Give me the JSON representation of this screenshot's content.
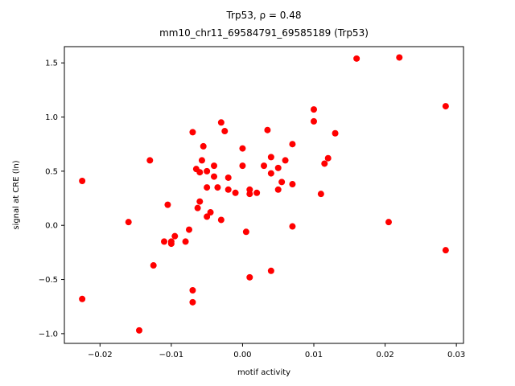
{
  "figure": {
    "background": "#ffffff"
  },
  "chart_data": {
    "type": "scatter",
    "title_line1": "Trp53, ρ = 0.48",
    "title_line2": "mm10_chr11_69584791_69585189 (Trp53)",
    "xlabel": "motif activity",
    "ylabel": "signal at CRE (ln)",
    "xlim": [
      -0.025,
      0.031
    ],
    "ylim": [
      -1.09,
      1.65
    ],
    "xticks": [
      -0.02,
      -0.01,
      0.0,
      0.01,
      0.02,
      0.03
    ],
    "xtick_labels": [
      "−0.02",
      "−0.01",
      "0.00",
      "0.01",
      "0.02",
      "0.03"
    ],
    "yticks": [
      -1.0,
      -0.5,
      0.0,
      0.5,
      1.0,
      1.5
    ],
    "ytick_labels": [
      "−1.0",
      "−0.5",
      "0.0",
      "0.5",
      "1.0",
      "1.5"
    ],
    "grid": false,
    "legend_position": "none",
    "marker_color": "#ff0000",
    "marker_radius": 4,
    "points": [
      [
        -0.0225,
        -0.68
      ],
      [
        -0.0225,
        0.41
      ],
      [
        -0.016,
        0.03
      ],
      [
        -0.0145,
        -0.97
      ],
      [
        -0.013,
        0.6
      ],
      [
        -0.0125,
        -0.37
      ],
      [
        -0.011,
        -0.15
      ],
      [
        -0.0105,
        0.19
      ],
      [
        -0.01,
        -0.17
      ],
      [
        -0.01,
        -0.15
      ],
      [
        -0.0095,
        -0.1
      ],
      [
        -0.008,
        -0.15
      ],
      [
        -0.0075,
        -0.04
      ],
      [
        -0.007,
        -0.6
      ],
      [
        -0.007,
        0.86
      ],
      [
        -0.007,
        -0.71
      ],
      [
        -0.0065,
        0.52
      ],
      [
        -0.0063,
        0.16
      ],
      [
        -0.006,
        0.49
      ],
      [
        -0.006,
        0.22
      ],
      [
        -0.0057,
        0.6
      ],
      [
        -0.0055,
        0.73
      ],
      [
        -0.005,
        0.5
      ],
      [
        -0.005,
        0.35
      ],
      [
        -0.005,
        0.08
      ],
      [
        -0.0045,
        0.12
      ],
      [
        -0.004,
        0.55
      ],
      [
        -0.004,
        0.45
      ],
      [
        -0.0035,
        0.35
      ],
      [
        -0.003,
        0.95
      ],
      [
        -0.003,
        0.05
      ],
      [
        -0.0025,
        0.87
      ],
      [
        -0.002,
        0.44
      ],
      [
        -0.002,
        0.33
      ],
      [
        -0.001,
        0.3
      ],
      [
        0.0,
        0.71
      ],
      [
        0.0,
        0.55
      ],
      [
        0.0005,
        -0.06
      ],
      [
        0.001,
        0.29
      ],
      [
        0.001,
        -0.48
      ],
      [
        0.001,
        0.33
      ],
      [
        0.002,
        0.3
      ],
      [
        0.003,
        0.55
      ],
      [
        0.0035,
        0.88
      ],
      [
        0.004,
        0.63
      ],
      [
        0.004,
        0.48
      ],
      [
        0.004,
        -0.42
      ],
      [
        0.005,
        0.53
      ],
      [
        0.005,
        0.33
      ],
      [
        0.0055,
        0.4
      ],
      [
        0.006,
        0.6
      ],
      [
        0.007,
        0.38
      ],
      [
        0.007,
        0.75
      ],
      [
        0.007,
        -0.01
      ],
      [
        0.01,
        1.07
      ],
      [
        0.01,
        0.96
      ],
      [
        0.011,
        0.29
      ],
      [
        0.0115,
        0.57
      ],
      [
        0.012,
        0.62
      ],
      [
        0.013,
        0.85
      ],
      [
        0.016,
        1.54
      ],
      [
        0.0205,
        0.03
      ],
      [
        0.022,
        1.55
      ],
      [
        0.0285,
        1.1
      ],
      [
        0.0285,
        -0.23
      ]
    ]
  }
}
